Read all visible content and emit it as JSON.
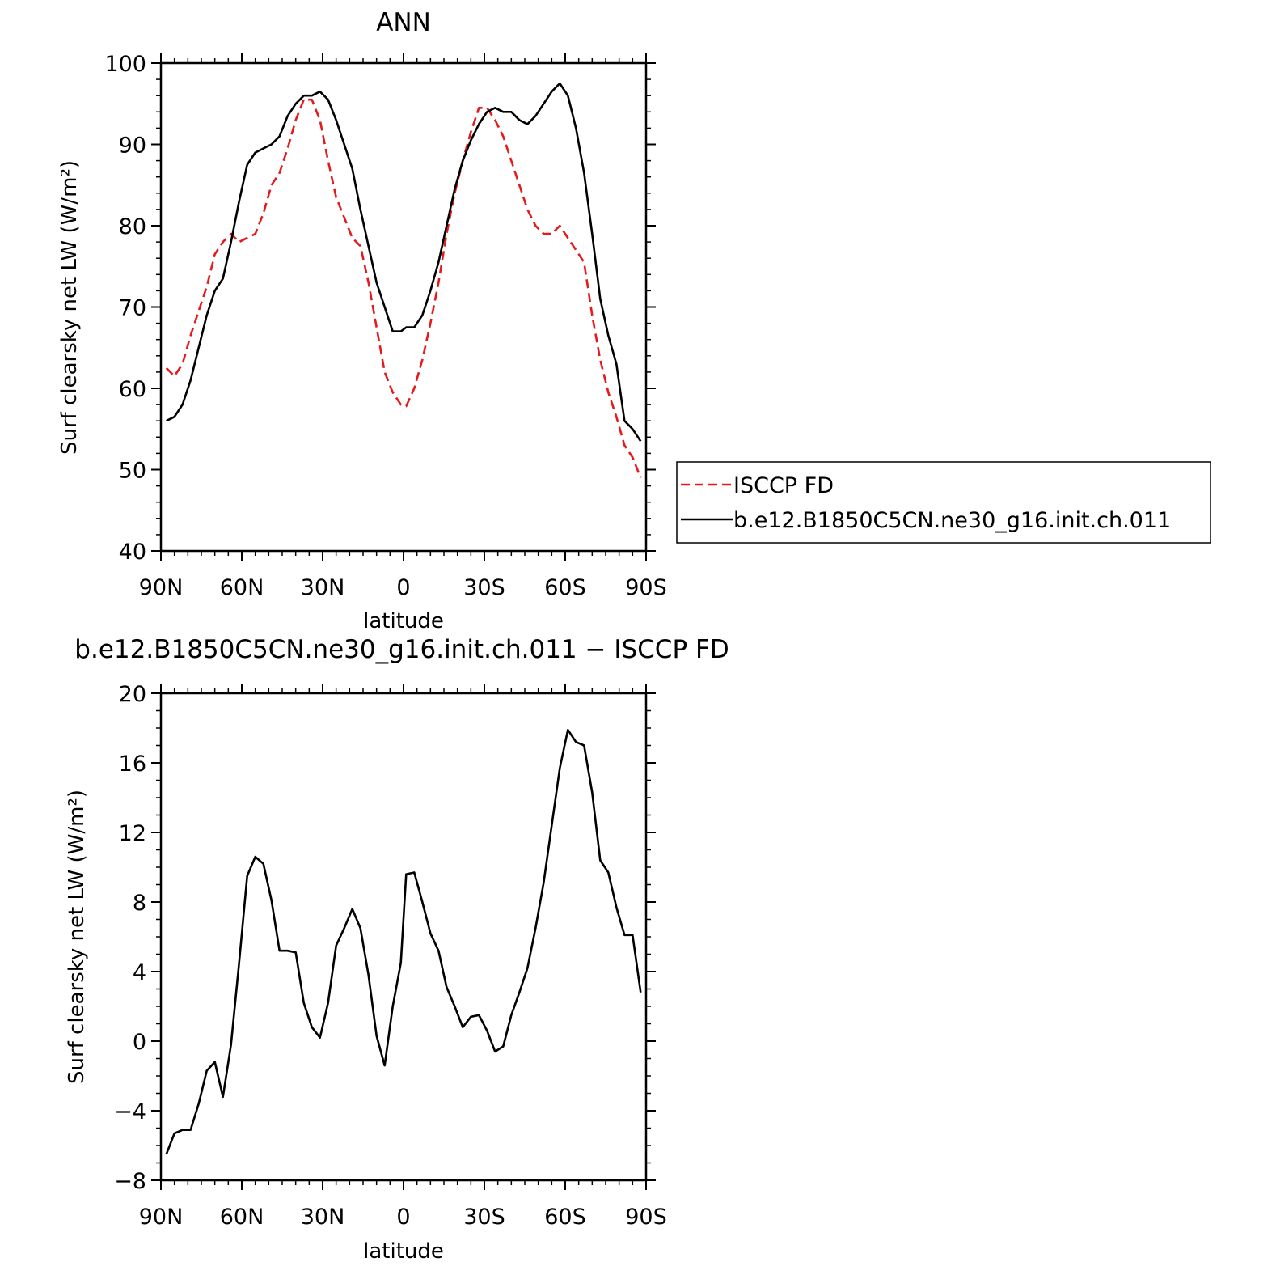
{
  "chart_data": [
    {
      "type": "line",
      "title": "ANN",
      "xlabel": "latitude",
      "ylabel": "Surf clearsky net LW (W/m²)",
      "xlim": [
        90,
        -90
      ],
      "ylim": [
        40,
        100
      ],
      "xticks": [
        {
          "value": 90,
          "label": "90N"
        },
        {
          "value": 60,
          "label": "60N"
        },
        {
          "value": 30,
          "label": "30N"
        },
        {
          "value": 0,
          "label": "0"
        },
        {
          "value": -30,
          "label": "30S"
        },
        {
          "value": -60,
          "label": "60S"
        },
        {
          "value": -90,
          "label": "90S"
        }
      ],
      "yticks": [
        40,
        50,
        60,
        70,
        80,
        90,
        100
      ],
      "grid": false,
      "legend": "right-outside",
      "series": [
        {
          "name": "ISCCP FD",
          "color": "#e41a1c",
          "dash": "dashed",
          "x": [
            88,
            85,
            82,
            79,
            76,
            73,
            70,
            67,
            64,
            61,
            58,
            55,
            52,
            49,
            46,
            43,
            40,
            37,
            34,
            31,
            28,
            25,
            22,
            19,
            16,
            13,
            10,
            7,
            4,
            1,
            -1,
            -4,
            -7,
            -10,
            -13,
            -16,
            -19,
            -22,
            -25,
            -28,
            -31,
            -34,
            -37,
            -40,
            -43,
            -46,
            -49,
            -52,
            -55,
            -58,
            -61,
            -64,
            -67,
            -70,
            -73,
            -76,
            -79,
            -82,
            -85,
            -88
          ],
          "y": [
            62.5,
            61.5,
            63.0,
            66.5,
            69.5,
            72.5,
            76.5,
            78.0,
            79.0,
            78.0,
            78.5,
            79.0,
            81.5,
            85.0,
            86.5,
            89.5,
            93.0,
            95.5,
            95.5,
            93.0,
            88.0,
            83.5,
            81.0,
            78.5,
            77.5,
            73.0,
            67.5,
            62.0,
            59.5,
            58.0,
            57.8,
            60.0,
            63.5,
            68.0,
            73.0,
            79.0,
            84.0,
            88.0,
            91.5,
            94.5,
            94.5,
            93.0,
            91.0,
            88.0,
            85.0,
            82.0,
            80.0,
            79.0,
            79.0,
            80.0,
            78.5,
            77.0,
            75.5,
            69.0,
            63.5,
            59.5,
            56.5,
            53.0,
            51.5,
            49.0
          ]
        },
        {
          "name": "b.e12.B1850C5CN.ne30_g16.init.ch.011",
          "color": "#000000",
          "dash": "solid",
          "x": [
            88,
            85,
            82,
            79,
            76,
            73,
            70,
            67,
            64,
            61,
            58,
            55,
            52,
            49,
            46,
            43,
            40,
            37,
            34,
            31,
            28,
            25,
            22,
            19,
            16,
            13,
            10,
            7,
            4,
            1,
            -1,
            -4,
            -7,
            -10,
            -13,
            -16,
            -19,
            -22,
            -25,
            -28,
            -31,
            -34,
            -37,
            -40,
            -43,
            -46,
            -49,
            -52,
            -55,
            -58,
            -61,
            -64,
            -67,
            -70,
            -73,
            -76,
            -79,
            -82,
            -85,
            -88
          ],
          "y": [
            56.0,
            56.5,
            58.0,
            61.0,
            65.0,
            69.0,
            72.0,
            73.5,
            78.0,
            83.0,
            87.5,
            89.0,
            89.5,
            90.0,
            91.0,
            93.5,
            95.0,
            96.0,
            96.0,
            96.5,
            95.5,
            93.0,
            90.0,
            87.0,
            82.0,
            77.5,
            73.0,
            70.0,
            67.0,
            67.0,
            67.5,
            67.5,
            69.0,
            72.0,
            75.5,
            80.0,
            84.5,
            88.0,
            90.5,
            92.5,
            94.0,
            94.5,
            94.0,
            94.0,
            93.0,
            92.5,
            93.5,
            95.0,
            96.5,
            97.5,
            96.0,
            92.0,
            86.5,
            79.0,
            71.0,
            66.5,
            63.0,
            56.0,
            55.0,
            53.5
          ]
        }
      ]
    },
    {
      "type": "line",
      "title": "b.e12.B1850C5CN.ne30_g16.init.ch.011 − ISCCP FD",
      "xlabel": "latitude",
      "ylabel": "Surf clearsky net LW (W/m²)",
      "xlim": [
        90,
        -90
      ],
      "ylim": [
        -8,
        20
      ],
      "xticks": [
        {
          "value": 90,
          "label": "90N"
        },
        {
          "value": 60,
          "label": "60N"
        },
        {
          "value": 30,
          "label": "30N"
        },
        {
          "value": 0,
          "label": "0"
        },
        {
          "value": -30,
          "label": "30S"
        },
        {
          "value": -60,
          "label": "60S"
        },
        {
          "value": -90,
          "label": "90S"
        }
      ],
      "yticks": [
        -8,
        -4,
        0,
        4,
        8,
        12,
        16,
        20
      ],
      "grid": false,
      "series": [
        {
          "color": "#000000",
          "dash": "solid",
          "x": [
            88,
            85,
            82,
            79,
            76,
            73,
            70,
            67,
            64,
            61,
            58,
            55,
            52,
            49,
            46,
            43,
            40,
            37,
            34,
            31,
            28,
            25,
            22,
            19,
            16,
            13,
            10,
            7,
            4,
            1,
            -1,
            -4,
            -7,
            -10,
            -13,
            -16,
            -19,
            -22,
            -25,
            -28,
            -31,
            -34,
            -37,
            -40,
            -43,
            -46,
            -49,
            -52,
            -55,
            -58,
            -61,
            -64,
            -67,
            -70,
            -73,
            -76,
            -79,
            -82,
            -85,
            -88
          ],
          "y": [
            -6.5,
            -5.3,
            -5.1,
            -5.1,
            -3.6,
            -1.7,
            -1.2,
            -3.2,
            -0.2,
            4.5,
            9.5,
            10.6,
            10.2,
            8.1,
            5.2,
            5.2,
            5.1,
            2.2,
            0.8,
            0.2,
            2.2,
            5.5,
            6.5,
            7.6,
            6.5,
            3.8,
            0.3,
            -1.4,
            2.0,
            4.5,
            9.6,
            9.7,
            8.0,
            6.2,
            5.2,
            3.1,
            2.0,
            0.8,
            1.4,
            1.5,
            0.6,
            -0.6,
            -0.3,
            1.5,
            2.8,
            4.2,
            6.5,
            9.1,
            12.4,
            15.7,
            17.9,
            17.2,
            17.0,
            14.3,
            10.4,
            9.7,
            7.7,
            6.1,
            6.1,
            2.8
          ]
        }
      ]
    }
  ]
}
